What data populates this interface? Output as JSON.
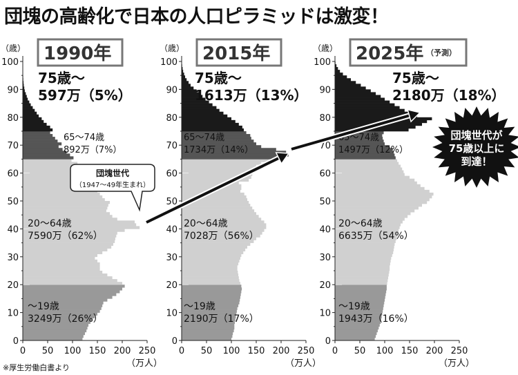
{
  "headline": "団塊の高齢化で日本の人口ピラミッドは激変！",
  "source_note": "※厚生労働白書より",
  "axis": {
    "y_unit": "（歳）",
    "x_unit": "（万人）",
    "y_ticks": [
      "0",
      "10",
      "20",
      "30",
      "40",
      "50",
      "60",
      "70",
      "80",
      "90",
      "100"
    ],
    "x_ticks": [
      "0",
      "50",
      "100",
      "150",
      "200",
      "250"
    ]
  },
  "callout_boomer": {
    "line1": "団塊世代",
    "line2": "（1947～49年生まれ）"
  },
  "starburst": {
    "line1": "団塊世代が",
    "line2": "75歳以上に",
    "line3": "到達！"
  },
  "colors": {
    "age_0_19": "#999999",
    "age_20_64": "#d0d0d0",
    "age_65_74": "#555555",
    "age_75_plus": "#1a1a1a",
    "frame_stroke": "#777777"
  },
  "chart_data": [
    {
      "type": "bar",
      "orientation": "horizontal",
      "year_label": "1990年",
      "year_suffix": "",
      "ylabel": "（歳）",
      "xlabel": "（万人）",
      "xlim": [
        0,
        250
      ],
      "ylim": [
        0,
        100
      ],
      "groups": [
        {
          "name": "75歳～",
          "value": "597万（5%）",
          "age_range": [
            75,
            100
          ]
        },
        {
          "name": "65～74歳",
          "value": "892万（7%）",
          "age_range": [
            65,
            74
          ]
        },
        {
          "name": "20～64歳",
          "value": "7590万（62%）",
          "age_range": [
            20,
            64
          ]
        },
        {
          "name": "～19歳",
          "value": "3249万（26%）",
          "age_range": [
            0,
            19
          ]
        }
      ],
      "population_by_age": [
        120,
        122,
        125,
        128,
        130,
        132,
        136,
        140,
        145,
        150,
        155,
        158,
        160,
        162,
        170,
        180,
        188,
        195,
        200,
        205,
        200,
        190,
        180,
        170,
        160,
        155,
        155,
        155,
        150,
        145,
        150,
        160,
        170,
        178,
        182,
        185,
        186,
        188,
        190,
        205,
        235,
        228,
        225,
        190,
        180,
        175,
        168,
        170,
        172,
        175,
        165,
        160,
        155,
        150,
        155,
        140,
        130,
        125,
        128,
        140,
        135,
        130,
        125,
        110,
        98,
        102,
        95,
        88,
        80,
        72,
        78,
        70,
        65,
        60,
        55,
        60,
        55,
        48,
        42,
        38,
        32,
        28,
        24,
        20,
        16,
        13,
        10,
        8,
        6,
        4,
        3,
        2,
        1.5,
        1,
        0.8,
        0.5,
        0.3,
        0.2,
        0.1,
        0.1
      ]
    },
    {
      "type": "bar",
      "orientation": "horizontal",
      "year_label": "2015年",
      "year_suffix": "",
      "ylabel": "（歳）",
      "xlabel": "（万人）",
      "xlim": [
        0,
        250
      ],
      "ylim": [
        0,
        100
      ],
      "groups": [
        {
          "name": "75歳～",
          "value": "1613万（13%）",
          "age_range": [
            75,
            100
          ]
        },
        {
          "name": "65～74歳",
          "value": "1734万（14%）",
          "age_range": [
            65,
            74
          ]
        },
        {
          "name": "20～64歳",
          "value": "7028万（56%）",
          "age_range": [
            20,
            64
          ]
        },
        {
          "name": "～19歳",
          "value": "2190万（17%）",
          "age_range": [
            0,
            19
          ]
        }
      ],
      "population_by_age": [
        100,
        102,
        103,
        105,
        106,
        106,
        107,
        108,
        109,
        110,
        111,
        112,
        114,
        116,
        117,
        118,
        119,
        120,
        121,
        120,
        118,
        116,
        115,
        114,
        113,
        112,
        112,
        114,
        116,
        118,
        120,
        124,
        128,
        132,
        138,
        145,
        150,
        158,
        162,
        166,
        170,
        170,
        166,
        160,
        155,
        150,
        146,
        142,
        138,
        135,
        132,
        130,
        126,
        118,
        120,
        120,
        115,
        135,
        140,
        142,
        145,
        148,
        150,
        160,
        175,
        200,
        215,
        210,
        190,
        160,
        150,
        145,
        140,
        138,
        130,
        125,
        122,
        115,
        108,
        100,
        92,
        84,
        76,
        70,
        62,
        55,
        48,
        42,
        36,
        30,
        24,
        18,
        14,
        10,
        7,
        5,
        3,
        2,
        1,
        0.5
      ]
    },
    {
      "type": "bar",
      "orientation": "horizontal",
      "year_label": "2025年",
      "year_suffix": "（予測）",
      "ylabel": "（歳）",
      "xlabel": "（万人）",
      "xlim": [
        0,
        250
      ],
      "ylim": [
        0,
        100
      ],
      "groups": [
        {
          "name": "75歳～",
          "value": "2180万（18%）",
          "age_range": [
            75,
            100
          ]
        },
        {
          "name": "65～74歳",
          "value": "1497万（12%）",
          "age_range": [
            65,
            74
          ]
        },
        {
          "name": "20～64歳",
          "value": "6635万（54%）",
          "age_range": [
            20,
            64
          ]
        },
        {
          "name": "～19歳",
          "value": "1943万（16%）",
          "age_range": [
            0,
            19
          ]
        }
      ],
      "population_by_age": [
        80,
        82,
        84,
        86,
        88,
        90,
        92,
        93,
        94,
        95,
        96,
        97,
        98,
        99,
        100,
        101,
        102,
        103,
        104,
        104,
        105,
        106,
        107,
        108,
        109,
        110,
        110,
        111,
        112,
        113,
        115,
        117,
        118,
        119,
        120,
        122,
        124,
        125,
        127,
        128,
        130,
        132,
        136,
        140,
        146,
        152,
        160,
        168,
        175,
        185,
        190,
        195,
        198,
        190,
        180,
        172,
        165,
        160,
        150,
        140,
        138,
        135,
        132,
        128,
        125,
        122,
        120,
        118,
        116,
        110,
        100,
        98,
        96,
        95,
        98,
        148,
        162,
        175,
        185,
        195,
        165,
        150,
        140,
        130,
        120,
        110,
        100,
        92,
        82,
        72,
        62,
        52,
        42,
        32,
        24,
        16,
        10,
        6,
        3,
        1
      ]
    }
  ]
}
